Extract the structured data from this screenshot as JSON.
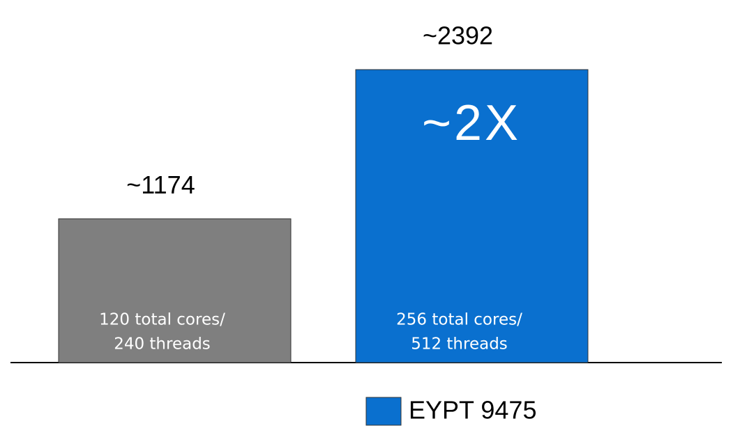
{
  "chart_data": {
    "type": "bar",
    "values": [
      1174,
      2392
    ],
    "value_labels": [
      "~1174",
      "~2392"
    ],
    "colors": [
      "#7f7f7f",
      "#0a70cf"
    ],
    "ylim": [
      0,
      2500
    ],
    "bar_annotations": [
      [
        "120 total cores/",
        "240 threads"
      ],
      [
        "256 total cores/",
        "512 threads"
      ]
    ],
    "annotation": "~2X",
    "legend": {
      "label": "EYPT 9475",
      "color": "#0a70cf"
    }
  }
}
